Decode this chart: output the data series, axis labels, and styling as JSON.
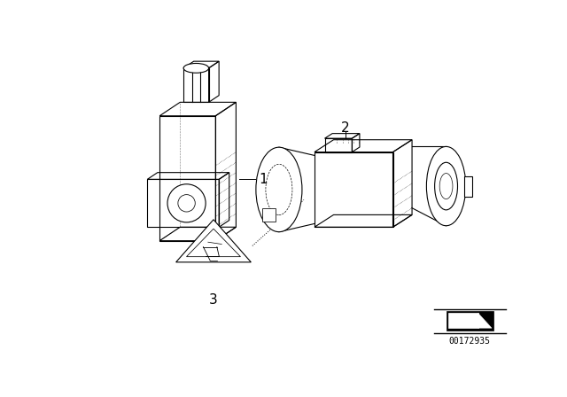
{
  "background_color": "#ffffff",
  "part_number": "00172935",
  "label1": "1",
  "label2": "2",
  "label3": "3",
  "line_color": "#000000",
  "text_color": "#000000",
  "font_size_labels": 11,
  "font_size_pn": 7
}
